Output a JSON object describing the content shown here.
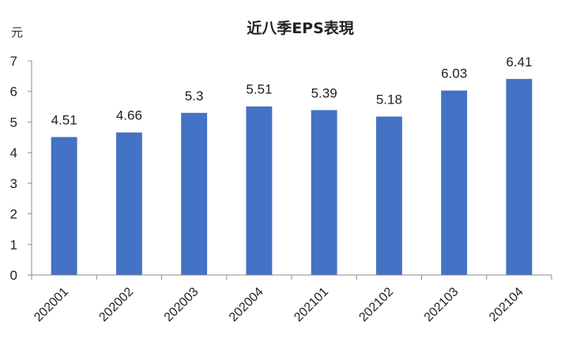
{
  "chart_data": {
    "type": "bar",
    "title": "近八季EPS表現",
    "ylabel": "元",
    "categories": [
      "202001",
      "202002",
      "202003",
      "202004",
      "202101",
      "202102",
      "202103",
      "202104"
    ],
    "values": [
      4.51,
      4.66,
      5.3,
      5.51,
      5.39,
      5.18,
      6.03,
      6.41
    ],
    "value_labels": [
      "4.51",
      "4.66",
      "5.3",
      "5.51",
      "5.39",
      "5.18",
      "6.03",
      "6.41"
    ],
    "ylim": [
      0,
      7
    ],
    "yticks": [
      "0",
      "1",
      "2",
      "3",
      "4",
      "5",
      "6",
      "7"
    ],
    "bar_color": "#4472C4",
    "grid": false,
    "legend": "none"
  }
}
